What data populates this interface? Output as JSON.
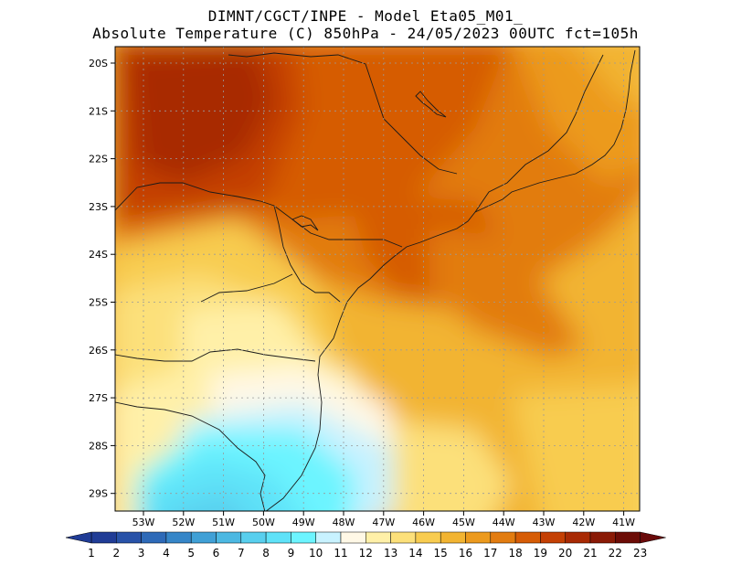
{
  "title": {
    "line1": "DIMNT/CGCT/INPE  -  Model Eta05_M01_",
    "line2": "Absolute Temperature (C) 850hPa -  24/05/2023 00UTC fct=105h"
  },
  "map": {
    "lat_labels": [
      "20S",
      "21S",
      "22S",
      "23S",
      "24S",
      "25S",
      "26S",
      "27S",
      "28S",
      "29S"
    ],
    "lon_labels": [
      "53W",
      "52W",
      "51W",
      "50W",
      "49W",
      "48W",
      "47W",
      "46W",
      "45W",
      "44W",
      "43W",
      "42W",
      "41W"
    ]
  },
  "colorbar": {
    "labels": [
      "1",
      "2",
      "3",
      "4",
      "5",
      "6",
      "7",
      "8",
      "9",
      "10",
      "11",
      "12",
      "13",
      "14",
      "15",
      "16",
      "17",
      "18",
      "19",
      "20",
      "21",
      "22",
      "23"
    ],
    "colors": [
      "#203c96",
      "#2852a8",
      "#2e6ab8",
      "#3686c8",
      "#40a0d6",
      "#4cb8e2",
      "#58cfee",
      "#5fe2f8",
      "#6cf4ff",
      "#c8f2ff",
      "#fff8e6",
      "#fff0a8",
      "#fce07a",
      "#f8cc50",
      "#f2b432",
      "#ec9a1e",
      "#e27c10",
      "#d65c06",
      "#c44004",
      "#a82a04",
      "#8a1a06",
      "#6c0c06"
    ],
    "low_color": "#203c96",
    "high_color": "#6a0a0a"
  }
}
